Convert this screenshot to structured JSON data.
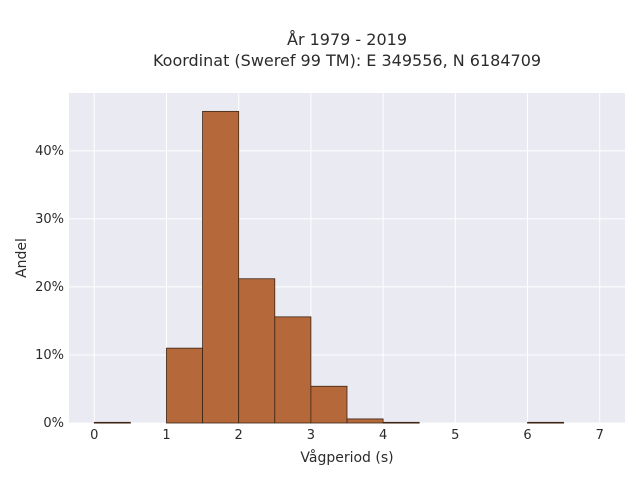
{
  "chart_data": {
    "type": "bar",
    "title_line1": "År 1979 - 2019",
    "title_line2": "Koordinat (Sweref 99 TM): E 349556, N 6184709",
    "xlabel": "Vågperiod (s)",
    "ylabel": "Andel",
    "xlim": [
      -0.35,
      7.35
    ],
    "ylim": [
      0,
      48.5
    ],
    "xticks": [
      0,
      1,
      2,
      3,
      4,
      5,
      6,
      7
    ],
    "yticks": [
      0,
      10,
      20,
      30,
      40
    ],
    "ytick_labels": [
      "0%",
      "10%",
      "20%",
      "30%",
      "40%"
    ],
    "bin_width": 0.5,
    "bins": [
      {
        "start": 0.0,
        "value": 0.1
      },
      {
        "start": 1.0,
        "value": 11.0
      },
      {
        "start": 1.5,
        "value": 45.8
      },
      {
        "start": 2.0,
        "value": 21.2
      },
      {
        "start": 2.5,
        "value": 15.6
      },
      {
        "start": 3.0,
        "value": 5.4
      },
      {
        "start": 3.5,
        "value": 0.6
      },
      {
        "start": 4.0,
        "value": 0.1
      },
      {
        "start": 6.0,
        "value": 0.1
      }
    ],
    "grid": true,
    "colors": {
      "bar_fill": "#b5693a",
      "bar_stroke": "#3d2414",
      "plot_bg": "#eaeaf2",
      "grid": "#ffffff"
    }
  }
}
